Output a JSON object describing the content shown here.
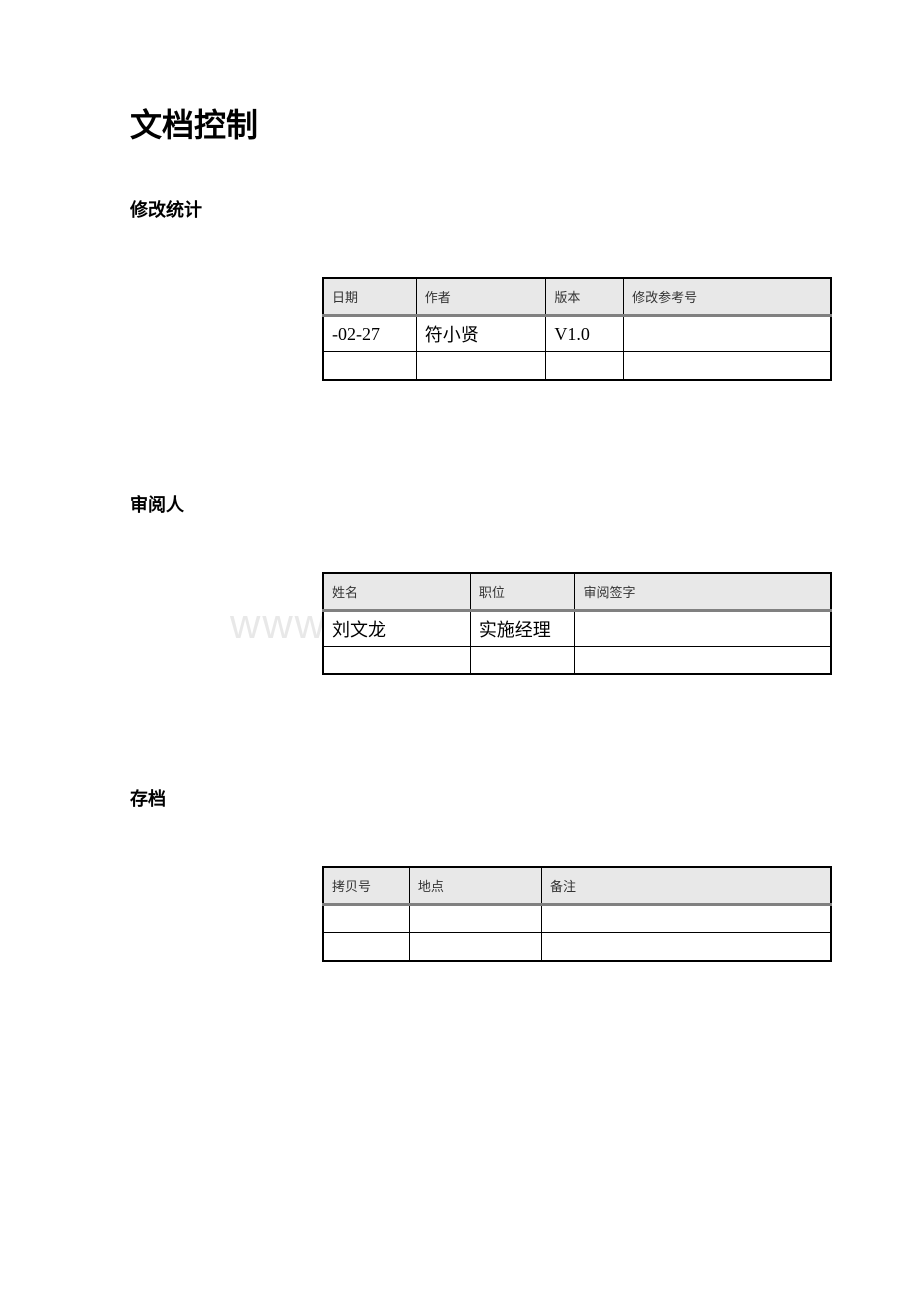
{
  "page": {
    "title": "文档控制",
    "background_color": "#ffffff",
    "text_color": "#000000"
  },
  "watermark": {
    "text": "www.zixin.com.cn",
    "color": "#e8e8e8"
  },
  "sections": {
    "revision": {
      "title": "修改统计",
      "columns": [
        "日期",
        "作者",
        "版本",
        "修改参考号"
      ],
      "column_widths": [
        "90px",
        "125px",
        "75px",
        "200px"
      ],
      "rows": [
        [
          "-02-27",
          "符小贤",
          "V1.0",
          ""
        ],
        [
          "",
          "",
          "",
          ""
        ]
      ]
    },
    "reviewer": {
      "title": "审阅人",
      "columns": [
        "姓名",
        "职位",
        "审阅签字"
      ],
      "column_widths": [
        "145px",
        "103px",
        "252px"
      ],
      "rows": [
        [
          "刘文龙",
          "实施经理",
          ""
        ],
        [
          "",
          "",
          ""
        ]
      ]
    },
    "archive": {
      "title": "存档",
      "columns": [
        "拷贝号",
        "地点",
        "备注"
      ],
      "column_widths": [
        "85px",
        "130px",
        "285px"
      ],
      "rows": [
        [
          "",
          "",
          ""
        ],
        [
          "",
          "",
          ""
        ]
      ]
    }
  },
  "table_style": {
    "header_bg": "#e8e8e8",
    "border_color": "#000000",
    "header_divider_color": "#808080",
    "header_fontsize": 13,
    "cell_fontsize": 18
  }
}
